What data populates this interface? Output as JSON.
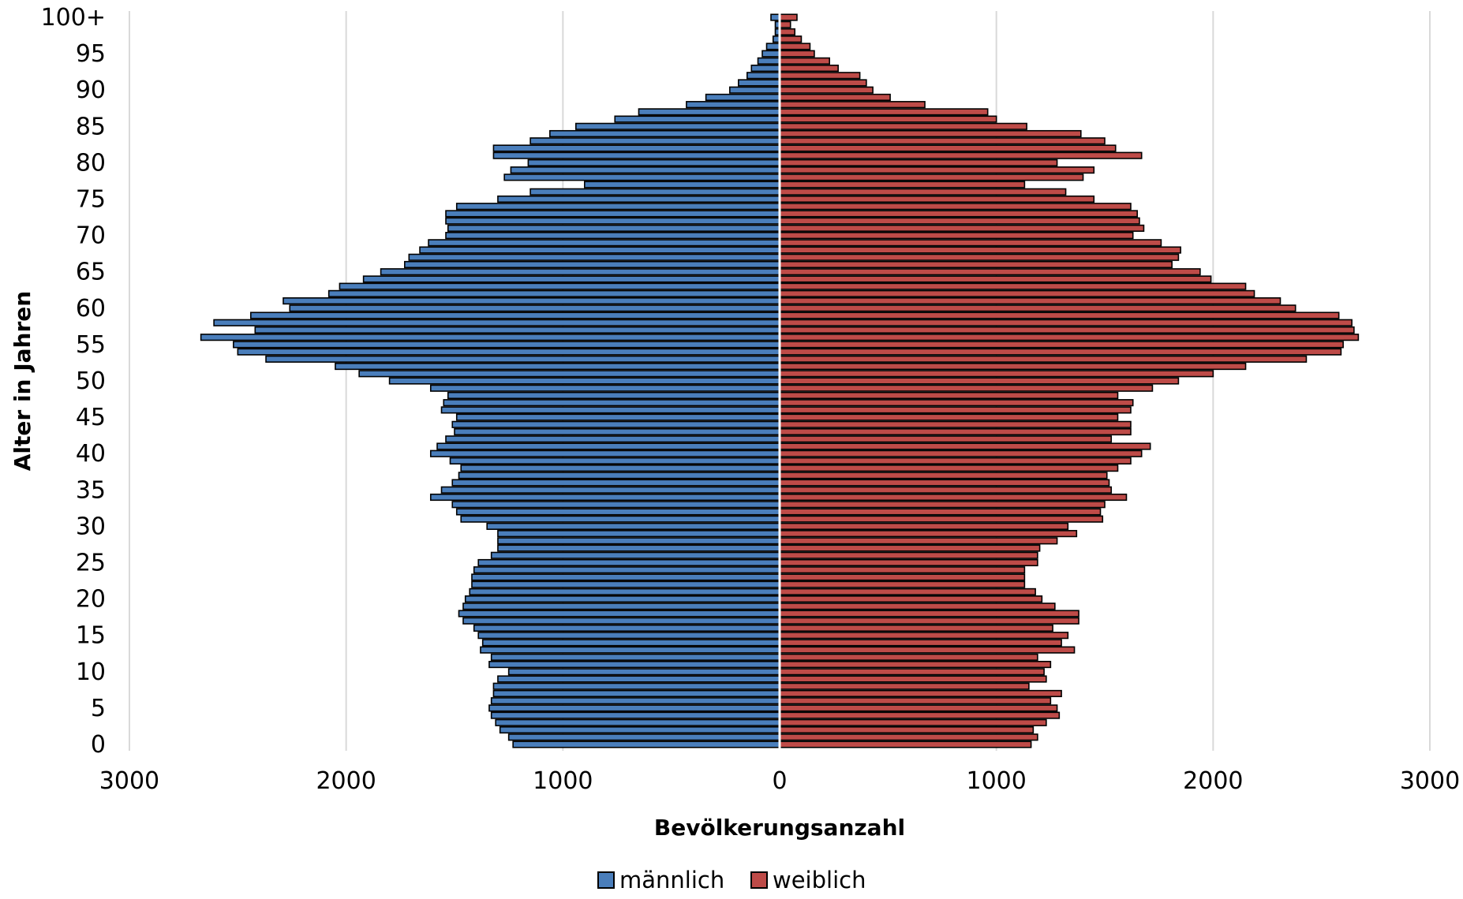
{
  "chart_data": {
    "type": "bar",
    "orientation": "horizontal",
    "layout": "population-pyramid",
    "xlabel": "Bevölkerungsanzahl",
    "ylabel": "Alter in Jahren",
    "xlim": [
      -3000,
      3000
    ],
    "x_ticks": [
      {
        "value": -3000,
        "label": "3000"
      },
      {
        "value": -2000,
        "label": "2000"
      },
      {
        "value": -1000,
        "label": "1000"
      },
      {
        "value": 0,
        "label": "0"
      },
      {
        "value": 1000,
        "label": "1000"
      },
      {
        "value": 2000,
        "label": "2000"
      },
      {
        "value": 3000,
        "label": "3000"
      }
    ],
    "y_ticks": [
      {
        "value": 0,
        "label": "0"
      },
      {
        "value": 5,
        "label": "5"
      },
      {
        "value": 10,
        "label": "10"
      },
      {
        "value": 15,
        "label": "15"
      },
      {
        "value": 20,
        "label": "20"
      },
      {
        "value": 25,
        "label": "25"
      },
      {
        "value": 30,
        "label": "30"
      },
      {
        "value": 35,
        "label": "35"
      },
      {
        "value": 40,
        "label": "40"
      },
      {
        "value": 45,
        "label": "45"
      },
      {
        "value": 50,
        "label": "50"
      },
      {
        "value": 55,
        "label": "55"
      },
      {
        "value": 60,
        "label": "60"
      },
      {
        "value": 65,
        "label": "65"
      },
      {
        "value": 70,
        "label": "70"
      },
      {
        "value": 75,
        "label": "75"
      },
      {
        "value": 80,
        "label": "80"
      },
      {
        "value": 85,
        "label": "85"
      },
      {
        "value": 90,
        "label": "90"
      },
      {
        "value": 95,
        "label": "95"
      },
      {
        "value": 100,
        "label": "100+"
      }
    ],
    "categories": [
      0,
      1,
      2,
      3,
      4,
      5,
      6,
      7,
      8,
      9,
      10,
      11,
      12,
      13,
      14,
      15,
      16,
      17,
      18,
      19,
      20,
      21,
      22,
      23,
      24,
      25,
      26,
      27,
      28,
      29,
      30,
      31,
      32,
      33,
      34,
      35,
      36,
      37,
      38,
      39,
      40,
      41,
      42,
      43,
      44,
      45,
      46,
      47,
      48,
      49,
      50,
      51,
      52,
      53,
      54,
      55,
      56,
      57,
      58,
      59,
      60,
      61,
      62,
      63,
      64,
      65,
      66,
      67,
      68,
      69,
      70,
      71,
      72,
      73,
      74,
      75,
      76,
      77,
      78,
      79,
      80,
      81,
      82,
      83,
      84,
      85,
      86,
      87,
      88,
      89,
      90,
      91,
      92,
      93,
      94,
      95,
      96,
      97,
      98,
      99,
      100
    ],
    "grid": true,
    "legend_position": "bottom",
    "series": [
      {
        "name": "männlich",
        "color": "#4a7ebb",
        "values": [
          1230,
          1250,
          1290,
          1310,
          1330,
          1340,
          1330,
          1320,
          1320,
          1300,
          1250,
          1340,
          1330,
          1380,
          1370,
          1390,
          1410,
          1460,
          1480,
          1460,
          1450,
          1430,
          1420,
          1420,
          1410,
          1390,
          1330,
          1300,
          1300,
          1300,
          1350,
          1470,
          1490,
          1510,
          1610,
          1560,
          1510,
          1480,
          1470,
          1520,
          1610,
          1580,
          1540,
          1500,
          1510,
          1490,
          1560,
          1550,
          1530,
          1610,
          1800,
          1940,
          2050,
          2370,
          2500,
          2520,
          2670,
          2420,
          2610,
          2440,
          2260,
          2290,
          2080,
          2030,
          1920,
          1840,
          1730,
          1710,
          1660,
          1620,
          1540,
          1530,
          1540,
          1540,
          1490,
          1300,
          1150,
          900,
          1270,
          1240,
          1160,
          1320,
          1320,
          1150,
          1060,
          940,
          760,
          650,
          430,
          340,
          230,
          190,
          150,
          130,
          100,
          80,
          60,
          30,
          20,
          20,
          40
        ]
      },
      {
        "name": "weiblich",
        "color": "#be4b48",
        "values": [
          1160,
          1190,
          1170,
          1230,
          1290,
          1280,
          1250,
          1300,
          1150,
          1230,
          1220,
          1250,
          1190,
          1360,
          1300,
          1330,
          1260,
          1380,
          1380,
          1270,
          1210,
          1180,
          1130,
          1130,
          1130,
          1190,
          1190,
          1200,
          1280,
          1370,
          1330,
          1490,
          1480,
          1500,
          1600,
          1530,
          1520,
          1510,
          1560,
          1620,
          1670,
          1710,
          1530,
          1620,
          1620,
          1560,
          1620,
          1630,
          1560,
          1720,
          1840,
          2000,
          2150,
          2430,
          2590,
          2600,
          2670,
          2650,
          2640,
          2580,
          2380,
          2310,
          2190,
          2150,
          1990,
          1940,
          1810,
          1840,
          1850,
          1760,
          1630,
          1680,
          1660,
          1650,
          1620,
          1450,
          1320,
          1130,
          1400,
          1450,
          1280,
          1670,
          1550,
          1500,
          1390,
          1140,
          1000,
          960,
          670,
          510,
          430,
          400,
          370,
          270,
          230,
          160,
          140,
          100,
          70,
          50,
          80
        ]
      }
    ]
  }
}
